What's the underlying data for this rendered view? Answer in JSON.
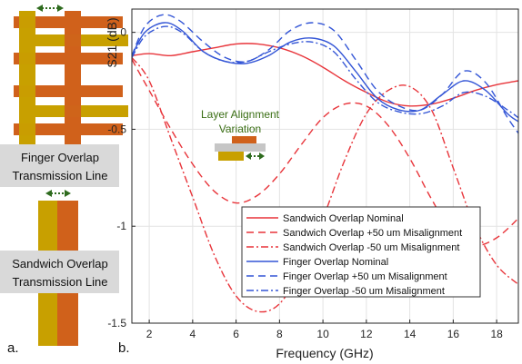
{
  "panel_a": {
    "label": "a.",
    "finger_caption_line1": "Finger Overlap",
    "finger_caption_line2": "Transmission Line",
    "sandwich_caption_line1": "Sandwich Overlap",
    "sandwich_caption_line2": "Transmission Line",
    "colors": {
      "gold": "#c8a000",
      "copper": "#d0611b",
      "arrow": "#2e6b1e",
      "caption_bg": "#d9d9d9"
    }
  },
  "panel_b": {
    "label": "b.",
    "inset_line1": "Layer Alignment",
    "inset_line2": "Variation",
    "inset_color": "#3a6e14"
  },
  "chart_data": {
    "type": "line",
    "xlabel": "Frequency (GHz)",
    "ylabel": "S21 (dB)",
    "xlim": [
      1.2,
      19
    ],
    "ylim": [
      -1.5,
      0.12
    ],
    "xticks": [
      2,
      4,
      6,
      8,
      10,
      12,
      14,
      16,
      18
    ],
    "yticks": [
      0,
      -0.5,
      -1,
      -1.5
    ],
    "ytick_labels": [
      "0",
      "-0.5",
      "-1",
      "-1.5"
    ],
    "grid": true,
    "legend_position": "lower-right",
    "series": [
      {
        "name": "Sandwich Overlap Nominal",
        "color": "#e8343a",
        "dash": "solid",
        "x": [
          1.2,
          2,
          3,
          4,
          5,
          6,
          7,
          8,
          9,
          10,
          11,
          12,
          13,
          14,
          15,
          16,
          17,
          18,
          19
        ],
        "y": [
          -0.12,
          -0.11,
          -0.12,
          -0.1,
          -0.08,
          -0.06,
          -0.06,
          -0.08,
          -0.12,
          -0.18,
          -0.25,
          -0.31,
          -0.36,
          -0.38,
          -0.37,
          -0.34,
          -0.3,
          -0.27,
          -0.25
        ]
      },
      {
        "name": "Sandwich Overlap +50 um Misalignment",
        "color": "#e8343a",
        "dash": "dashed",
        "x": [
          1.2,
          2,
          3,
          4,
          5,
          6,
          7,
          8,
          9,
          10,
          11,
          12,
          13,
          14,
          15,
          16,
          17,
          18,
          19
        ],
        "y": [
          -0.14,
          -0.3,
          -0.5,
          -0.68,
          -0.82,
          -0.88,
          -0.84,
          -0.73,
          -0.58,
          -0.44,
          -0.37,
          -0.38,
          -0.48,
          -0.65,
          -0.86,
          -1.04,
          -1.1,
          -1.06,
          -0.96
        ]
      },
      {
        "name": "Sandwich Overlap -50 um Misalignment",
        "color": "#e8343a",
        "dash": "dashdot",
        "x": [
          1.2,
          2,
          3,
          4,
          5,
          6,
          7,
          8,
          9,
          10,
          11,
          12,
          13,
          14,
          15,
          16,
          17,
          18,
          19
        ],
        "y": [
          -0.13,
          -0.25,
          -0.55,
          -0.85,
          -1.15,
          -1.36,
          -1.44,
          -1.4,
          -1.22,
          -0.96,
          -0.66,
          -0.42,
          -0.3,
          -0.28,
          -0.4,
          -0.7,
          -1.0,
          -1.2,
          -1.3
        ]
      },
      {
        "name": "Finger Overlap Nominal",
        "color": "#3355d6",
        "dash": "solid",
        "x": [
          1.2,
          1.8,
          2.7,
          3.5,
          4.5,
          5.5,
          6.5,
          7.5,
          8.5,
          9.5,
          10.5,
          11.5,
          12.5,
          13.5,
          14.5,
          15.5,
          16.5,
          17.5,
          18.5,
          19
        ],
        "y": [
          -0.12,
          0.0,
          0.05,
          0.01,
          -0.1,
          -0.15,
          -0.16,
          -0.12,
          -0.05,
          -0.03,
          -0.07,
          -0.2,
          -0.34,
          -0.4,
          -0.4,
          -0.32,
          -0.25,
          -0.3,
          -0.42,
          -0.46
        ]
      },
      {
        "name": "Finger Overlap +50 um Misalignment",
        "color": "#3355d6",
        "dash": "dashed",
        "x": [
          1.2,
          1.8,
          2.6,
          3.4,
          4.5,
          5.5,
          6.5,
          7.5,
          8.5,
          9.5,
          10.5,
          11.5,
          12.5,
          13.5,
          14.5,
          15.5,
          16.5,
          17.5,
          18.5,
          19
        ],
        "y": [
          -0.12,
          0.03,
          0.09,
          0.06,
          -0.05,
          -0.13,
          -0.15,
          -0.09,
          0.01,
          0.05,
          0.01,
          -0.14,
          -0.3,
          -0.38,
          -0.4,
          -0.32,
          -0.2,
          -0.26,
          -0.44,
          -0.52
        ]
      },
      {
        "name": "Finger Overlap -50 um Misalignment",
        "color": "#3355d6",
        "dash": "dashdot",
        "x": [
          1.2,
          1.8,
          2.7,
          3.5,
          4.5,
          5.5,
          6.5,
          7.5,
          8.5,
          9.5,
          10.5,
          11.5,
          12.5,
          13.5,
          14.5,
          15.5,
          16.5,
          17.5,
          18.5,
          19
        ],
        "y": [
          -0.13,
          -0.02,
          0.03,
          0.0,
          -0.1,
          -0.15,
          -0.15,
          -0.1,
          -0.06,
          -0.05,
          -0.1,
          -0.24,
          -0.36,
          -0.41,
          -0.42,
          -0.38,
          -0.31,
          -0.33,
          -0.4,
          -0.44
        ]
      }
    ]
  }
}
